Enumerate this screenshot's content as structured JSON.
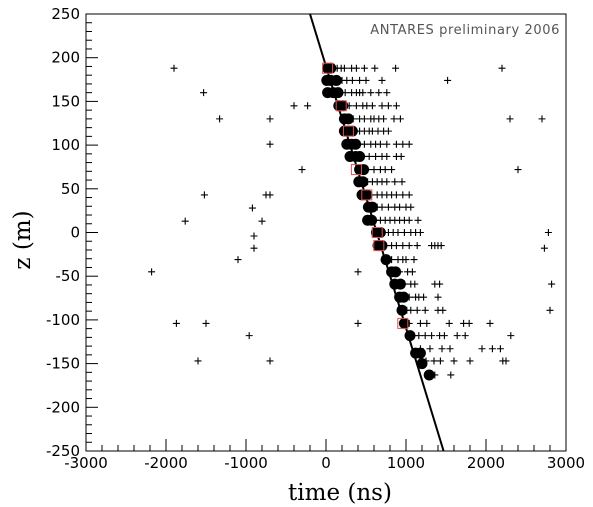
{
  "chart_data": {
    "type": "scatter",
    "title": "",
    "annotation": "ANTARES preliminary 2006",
    "xlabel": "time (ns)",
    "ylabel": "z (m)",
    "xlim": [
      -3000,
      3000
    ],
    "ylim": [
      -250,
      250
    ],
    "x_ticks": [
      -3000,
      -2000,
      -1000,
      0,
      1000,
      2000,
      3000
    ],
    "y_ticks": [
      -250,
      -200,
      -150,
      -100,
      -50,
      0,
      50,
      100,
      150,
      200,
      250
    ],
    "grid": false,
    "colors": {
      "fit_line": "#000000",
      "selected_hits": "#000000",
      "squares": "#e05050",
      "all_hits": "#000000"
    },
    "fit_line": {
      "points": [
        [
          -200,
          250
        ],
        [
          1470,
          -250
        ]
      ]
    },
    "series": [
      {
        "marker": "circle",
        "points": [
          [
            20,
            188
          ],
          [
            60,
            188
          ],
          [
            10,
            174
          ],
          [
            60,
            174
          ],
          [
            130,
            174
          ],
          [
            20,
            160
          ],
          [
            90,
            160
          ],
          [
            150,
            160
          ],
          [
            160,
            145
          ],
          [
            210,
            145
          ],
          [
            230,
            130
          ],
          [
            280,
            130
          ],
          [
            230,
            116
          ],
          [
            280,
            116
          ],
          [
            330,
            116
          ],
          [
            260,
            101
          ],
          [
            320,
            101
          ],
          [
            370,
            101
          ],
          [
            300,
            87
          ],
          [
            370,
            87
          ],
          [
            420,
            87
          ],
          [
            420,
            72
          ],
          [
            470,
            72
          ],
          [
            410,
            58
          ],
          [
            460,
            58
          ],
          [
            450,
            43
          ],
          [
            510,
            43
          ],
          [
            530,
            29
          ],
          [
            580,
            29
          ],
          [
            520,
            14
          ],
          [
            570,
            14
          ],
          [
            630,
            0
          ],
          [
            680,
            0
          ],
          [
            650,
            -15
          ],
          [
            700,
            -15
          ],
          [
            750,
            -31
          ],
          [
            820,
            -45
          ],
          [
            870,
            -45
          ],
          [
            860,
            -59
          ],
          [
            930,
            -59
          ],
          [
            920,
            -74
          ],
          [
            970,
            -74
          ],
          [
            950,
            -89
          ],
          [
            980,
            -104
          ],
          [
            1050,
            -118
          ],
          [
            1120,
            -138
          ],
          [
            1180,
            -138
          ],
          [
            1200,
            -150
          ],
          [
            1290,
            -163
          ]
        ]
      },
      {
        "marker": "square",
        "points": [
          [
            20,
            188
          ],
          [
            190,
            145
          ],
          [
            280,
            116
          ],
          [
            380,
            72
          ],
          [
            510,
            43
          ],
          [
            640,
            0
          ],
          [
            660,
            -15
          ],
          [
            960,
            -104
          ]
        ]
      },
      {
        "marker": "plus",
        "points": [
          [
            -1900,
            188
          ],
          [
            -1530,
            160
          ],
          [
            -1330,
            130
          ],
          [
            -2180,
            -45
          ],
          [
            -1870,
            -104
          ],
          [
            -1500,
            -104
          ],
          [
            -1600,
            -147
          ],
          [
            -1760,
            13
          ],
          [
            -1520,
            43
          ],
          [
            -1100,
            -31
          ],
          [
            -920,
            28
          ],
          [
            -800,
            13
          ],
          [
            -900,
            -4
          ],
          [
            -900,
            -18
          ],
          [
            -960,
            -118
          ],
          [
            -700,
            -147
          ],
          [
            -700,
            130
          ],
          [
            -700,
            101
          ],
          [
            -750,
            43
          ],
          [
            -700,
            43
          ],
          [
            -300,
            72
          ],
          [
            -230,
            145
          ],
          [
            -400,
            145
          ],
          [
            100,
            188
          ],
          [
            140,
            188
          ],
          [
            190,
            188
          ],
          [
            230,
            188
          ],
          [
            320,
            188
          ],
          [
            380,
            188
          ],
          [
            480,
            188
          ],
          [
            610,
            188
          ],
          [
            870,
            188
          ],
          [
            200,
            174
          ],
          [
            260,
            174
          ],
          [
            330,
            174
          ],
          [
            420,
            174
          ],
          [
            500,
            174
          ],
          [
            700,
            174
          ],
          [
            240,
            160
          ],
          [
            320,
            160
          ],
          [
            380,
            160
          ],
          [
            420,
            160
          ],
          [
            460,
            160
          ],
          [
            560,
            160
          ],
          [
            660,
            160
          ],
          [
            760,
            160
          ],
          [
            290,
            145
          ],
          [
            380,
            145
          ],
          [
            460,
            145
          ],
          [
            510,
            145
          ],
          [
            580,
            145
          ],
          [
            700,
            145
          ],
          [
            780,
            145
          ],
          [
            880,
            145
          ],
          [
            340,
            130
          ],
          [
            420,
            130
          ],
          [
            480,
            130
          ],
          [
            560,
            130
          ],
          [
            600,
            130
          ],
          [
            660,
            130
          ],
          [
            720,
            130
          ],
          [
            850,
            130
          ],
          [
            930,
            130
          ],
          [
            370,
            116
          ],
          [
            420,
            116
          ],
          [
            480,
            116
          ],
          [
            540,
            116
          ],
          [
            580,
            116
          ],
          [
            650,
            116
          ],
          [
            720,
            116
          ],
          [
            780,
            116
          ],
          [
            420,
            101
          ],
          [
            480,
            101
          ],
          [
            560,
            101
          ],
          [
            620,
            101
          ],
          [
            680,
            101
          ],
          [
            760,
            101
          ],
          [
            880,
            101
          ],
          [
            960,
            101
          ],
          [
            1040,
            101
          ],
          [
            470,
            87
          ],
          [
            540,
            87
          ],
          [
            620,
            87
          ],
          [
            700,
            87
          ],
          [
            760,
            87
          ],
          [
            880,
            87
          ],
          [
            940,
            87
          ],
          [
            520,
            72
          ],
          [
            600,
            72
          ],
          [
            680,
            72
          ],
          [
            740,
            72
          ],
          [
            820,
            72
          ],
          [
            520,
            58
          ],
          [
            580,
            58
          ],
          [
            640,
            58
          ],
          [
            700,
            58
          ],
          [
            760,
            58
          ],
          [
            860,
            58
          ],
          [
            950,
            58
          ],
          [
            570,
            43
          ],
          [
            640,
            43
          ],
          [
            700,
            43
          ],
          [
            760,
            43
          ],
          [
            820,
            43
          ],
          [
            880,
            43
          ],
          [
            960,
            43
          ],
          [
            1040,
            43
          ],
          [
            640,
            29
          ],
          [
            700,
            29
          ],
          [
            780,
            29
          ],
          [
            860,
            29
          ],
          [
            920,
            29
          ],
          [
            1000,
            29
          ],
          [
            1060,
            29
          ],
          [
            620,
            14
          ],
          [
            680,
            14
          ],
          [
            740,
            14
          ],
          [
            800,
            14
          ],
          [
            860,
            14
          ],
          [
            920,
            14
          ],
          [
            980,
            14
          ],
          [
            1040,
            14
          ],
          [
            1150,
            14
          ],
          [
            720,
            0
          ],
          [
            780,
            0
          ],
          [
            840,
            0
          ],
          [
            900,
            0
          ],
          [
            980,
            0
          ],
          [
            1060,
            0
          ],
          [
            1120,
            0
          ],
          [
            1180,
            0
          ],
          [
            750,
            -15
          ],
          [
            820,
            -15
          ],
          [
            880,
            -15
          ],
          [
            960,
            -15
          ],
          [
            1040,
            -15
          ],
          [
            1140,
            -15
          ],
          [
            1320,
            -15
          ],
          [
            1360,
            -15
          ],
          [
            1400,
            -15
          ],
          [
            1440,
            -15
          ],
          [
            820,
            -31
          ],
          [
            900,
            -31
          ],
          [
            960,
            -31
          ],
          [
            1000,
            -31
          ],
          [
            1100,
            -31
          ],
          [
            400,
            -45
          ],
          [
            920,
            -45
          ],
          [
            1020,
            -45
          ],
          [
            1080,
            -45
          ],
          [
            980,
            -59
          ],
          [
            1060,
            -59
          ],
          [
            1110,
            -59
          ],
          [
            1360,
            -59
          ],
          [
            1420,
            -59
          ],
          [
            1040,
            -74
          ],
          [
            1120,
            -74
          ],
          [
            1160,
            -74
          ],
          [
            1220,
            -74
          ],
          [
            1400,
            -74
          ],
          [
            1010,
            -89
          ],
          [
            1060,
            -89
          ],
          [
            1140,
            -89
          ],
          [
            1240,
            -89
          ],
          [
            1400,
            -89
          ],
          [
            1460,
            -89
          ],
          [
            400,
            -104
          ],
          [
            1040,
            -104
          ],
          [
            1180,
            -104
          ],
          [
            1260,
            -104
          ],
          [
            1540,
            -104
          ],
          [
            1720,
            -104
          ],
          [
            1790,
            -104
          ],
          [
            2050,
            -104
          ],
          [
            1100,
            -118
          ],
          [
            1160,
            -118
          ],
          [
            1240,
            -118
          ],
          [
            1320,
            -118
          ],
          [
            1420,
            -118
          ],
          [
            1480,
            -118
          ],
          [
            1640,
            -118
          ],
          [
            1740,
            -118
          ],
          [
            2310,
            -118
          ],
          [
            1180,
            -133
          ],
          [
            1300,
            -133
          ],
          [
            1450,
            -133
          ],
          [
            1550,
            -133
          ],
          [
            1950,
            -133
          ],
          [
            2080,
            -133
          ],
          [
            2180,
            -133
          ],
          [
            1250,
            -147
          ],
          [
            1350,
            -147
          ],
          [
            1430,
            -147
          ],
          [
            1600,
            -147
          ],
          [
            1800,
            -147
          ],
          [
            2210,
            -147
          ],
          [
            2250,
            -147
          ],
          [
            1360,
            -163
          ],
          [
            1560,
            -163
          ],
          [
            2200,
            188
          ],
          [
            1520,
            174
          ],
          [
            2300,
            130
          ],
          [
            2700,
            130
          ],
          [
            2400,
            72
          ],
          [
            2780,
            0
          ],
          [
            2730,
            -18
          ],
          [
            2820,
            -59
          ],
          [
            2800,
            -89
          ]
        ]
      }
    ]
  }
}
